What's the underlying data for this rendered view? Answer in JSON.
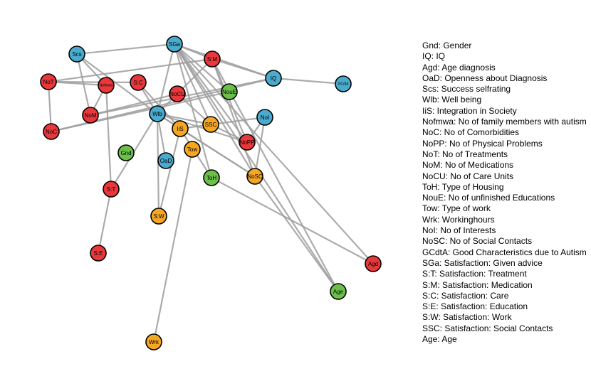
{
  "colors": {
    "red": "#E8383B",
    "blue": "#4AABCE",
    "green": "#6CC04A",
    "orange": "#F5A623",
    "edge": "#9e9e9e"
  },
  "nodes": [
    {
      "id": "Scs",
      "label": "Scs",
      "group": "blue"
    },
    {
      "id": "SGa",
      "label": "SGa",
      "group": "blue"
    },
    {
      "id": "S:M",
      "label": "S:M",
      "group": "red"
    },
    {
      "id": "IQ",
      "label": "IQ",
      "group": "blue"
    },
    {
      "id": "GCdtA",
      "label": "GCdtA",
      "group": "blue"
    },
    {
      "id": "NoT",
      "label": "NoT",
      "group": "red"
    },
    {
      "id": "Nofmwa",
      "label": "Nofmwa",
      "group": "red"
    },
    {
      "id": "S:C",
      "label": "S:C",
      "group": "red"
    },
    {
      "id": "NoCU",
      "label": "NoCU",
      "group": "red"
    },
    {
      "id": "NouE",
      "label": "NouE",
      "group": "green"
    },
    {
      "id": "NoI",
      "label": "NoI",
      "group": "blue"
    },
    {
      "id": "NoM",
      "label": "NoM",
      "group": "red"
    },
    {
      "id": "Wlb",
      "label": "Wlb",
      "group": "blue"
    },
    {
      "id": "SSC",
      "label": "SSC",
      "group": "orange"
    },
    {
      "id": "IiS",
      "label": "IiS",
      "group": "orange"
    },
    {
      "id": "NoC",
      "label": "NoC",
      "group": "red"
    },
    {
      "id": "NoPP",
      "label": "NoPP",
      "group": "red"
    },
    {
      "id": "Tow",
      "label": "Tow",
      "group": "orange"
    },
    {
      "id": "Gnd",
      "label": "Gnd",
      "group": "green"
    },
    {
      "id": "OaD",
      "label": "OaD",
      "group": "blue"
    },
    {
      "id": "ToH",
      "label": "ToH",
      "group": "green"
    },
    {
      "id": "NoSC",
      "label": "NoSC",
      "group": "orange"
    },
    {
      "id": "S:T",
      "label": "S:T",
      "group": "red"
    },
    {
      "id": "S:W",
      "label": "S:W",
      "group": "orange"
    },
    {
      "id": "S:E",
      "label": "S:E",
      "group": "red"
    },
    {
      "id": "Agd",
      "label": "Agd",
      "group": "red"
    },
    {
      "id": "Age",
      "label": "Age",
      "group": "green"
    },
    {
      "id": "Wrk",
      "label": "Wrk",
      "group": "orange"
    }
  ],
  "edges": [
    [
      "Scs",
      "SGa"
    ],
    [
      "Scs",
      "Nofmwa"
    ],
    [
      "Scs",
      "NoM"
    ],
    [
      "Scs",
      "Wlb"
    ],
    [
      "SGa",
      "S:M"
    ],
    [
      "SGa",
      "IQ"
    ],
    [
      "SGa",
      "NouE"
    ],
    [
      "SGa",
      "NoSC"
    ],
    [
      "SGa",
      "NoPP"
    ],
    [
      "SGa",
      "ToH"
    ],
    [
      "SGa",
      "Age"
    ],
    [
      "SGa",
      "Agd"
    ],
    [
      "SGa",
      "Wlb"
    ],
    [
      "SGa",
      "SSC"
    ],
    [
      "S:M",
      "IQ"
    ],
    [
      "S:M",
      "NoT"
    ],
    [
      "S:M",
      "NoSC"
    ],
    [
      "S:M",
      "NoPP"
    ],
    [
      "S:M",
      "Age"
    ],
    [
      "S:M",
      "Wlb"
    ],
    [
      "IQ",
      "GCdtA"
    ],
    [
      "IQ",
      "NoC"
    ],
    [
      "IQ",
      "NoM"
    ],
    [
      "NoT",
      "NoC"
    ],
    [
      "NoT",
      "Nofmwa"
    ],
    [
      "NoT",
      "S:C"
    ],
    [
      "Nofmwa",
      "NoM"
    ],
    [
      "Nofmwa",
      "S:T"
    ],
    [
      "S:C",
      "Wlb"
    ],
    [
      "S:C",
      "IiS"
    ],
    [
      "NoCU",
      "NoM"
    ],
    [
      "NoCU",
      "SSC"
    ],
    [
      "NouE",
      "NoC"
    ],
    [
      "NoI",
      "NoSC"
    ],
    [
      "NoI",
      "NoPP"
    ],
    [
      "NoI",
      "IiS"
    ],
    [
      "Wlb",
      "SSC"
    ],
    [
      "Wlb",
      "IiS"
    ],
    [
      "Wlb",
      "S:W"
    ],
    [
      "Wlb",
      "NoPP"
    ],
    [
      "Wlb",
      "S:T"
    ],
    [
      "Wlb",
      "NoSC"
    ],
    [
      "IiS",
      "NoSC"
    ],
    [
      "IiS",
      "S:W"
    ],
    [
      "IiS",
      "ToH"
    ],
    [
      "SSC",
      "NoPP"
    ],
    [
      "Tow",
      "Wrk"
    ],
    [
      "ToH",
      "Agd"
    ],
    [
      "NoSC",
      "Age"
    ],
    [
      "OaD",
      "Wlb"
    ],
    [
      "S:T",
      "S:E"
    ]
  ],
  "legend": [
    "Gnd: Gender",
    "IQ: IQ",
    "Agd: Age diagnosis",
    "OaD: Openness about Diagnosis",
    "Scs: Success selfrating",
    "Wlb: Well being",
    "IiS: Integration in Society",
    "Nofmwa: No of family members with autism",
    "NoC: No of Comorbidities",
    "NoPP: No of Physical Problems",
    "NoT: No of Treatments",
    "NoM: No of Medications",
    "NoCU: No of Care Units",
    "ToH: Type of Housing",
    "NouE: No of unfinished Educations",
    "Tow: Type of work",
    "Wrk: Workinghours",
    "NoI: No of Interests",
    "NoSC: No of Social Contacts",
    "GCdtA: Good Characteristics due to Autism",
    "SGa: Satisfaction: Given advice",
    "S:T: Satisfaction: Treatment",
    "S:M: Satisfaction: Medication",
    "S:C: Satisfaction: Care",
    "S:E: Satisfaction: Education",
    "S:W: Satisfaction: Work",
    "SSC: Satisfaction: Social Contacts",
    "Age: Age"
  ]
}
